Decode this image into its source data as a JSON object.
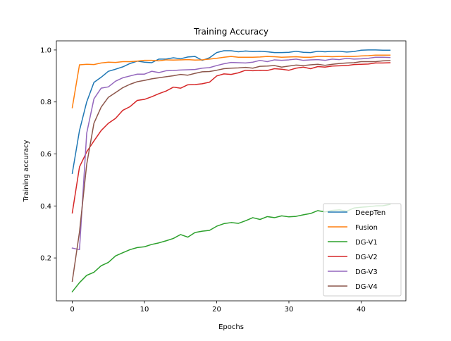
{
  "chart_data": {
    "type": "line",
    "title": "Training Accuracy",
    "xlabel": "Epochs",
    "ylabel": "Training accuracy",
    "xlim": [
      -2.2,
      46.2
    ],
    "ylim": [
      0.035,
      1.035
    ],
    "xticks": [
      0,
      10,
      20,
      30,
      40
    ],
    "yticks": [
      0.2,
      0.4,
      0.6,
      0.8,
      1.0
    ],
    "xtick_labels": [
      "0",
      "10",
      "20",
      "30",
      "40"
    ],
    "ytick_labels": [
      "0.2",
      "0.4",
      "0.6",
      "0.8",
      "1.0"
    ],
    "grid": false,
    "legend_position": "lower-right",
    "x": [
      0,
      1,
      2,
      3,
      4,
      5,
      6,
      7,
      8,
      9,
      10,
      11,
      12,
      13,
      14,
      15,
      16,
      17,
      18,
      19,
      20,
      21,
      22,
      23,
      24,
      25,
      26,
      27,
      28,
      29,
      30,
      31,
      32,
      33,
      34,
      35,
      36,
      37,
      38,
      39,
      40,
      41,
      42,
      43,
      44
    ],
    "series": [
      {
        "name": "DeepTen",
        "color": "#1f77b4",
        "values": [
          0.525,
          0.69,
          0.8,
          0.875,
          0.895,
          0.918,
          0.926,
          0.935,
          0.948,
          0.957,
          0.953,
          0.951,
          0.965,
          0.965,
          0.97,
          0.966,
          0.973,
          0.975,
          0.96,
          0.97,
          0.99,
          0.997,
          0.997,
          0.993,
          0.996,
          0.994,
          0.995,
          0.993,
          0.99,
          0.99,
          0.991,
          0.995,
          0.991,
          0.99,
          0.995,
          0.993,
          0.995,
          0.995,
          0.992,
          0.994,
          0.999,
          1.0,
          1.0,
          0.999,
          0.999
        ]
      },
      {
        "name": "Fusion",
        "color": "#ff7f0e",
        "values": [
          0.778,
          0.943,
          0.945,
          0.944,
          0.95,
          0.953,
          0.952,
          0.955,
          0.955,
          0.957,
          0.96,
          0.96,
          0.958,
          0.962,
          0.961,
          0.962,
          0.963,
          0.961,
          0.962,
          0.965,
          0.968,
          0.972,
          0.975,
          0.972,
          0.972,
          0.972,
          0.973,
          0.975,
          0.974,
          0.972,
          0.973,
          0.974,
          0.972,
          0.972,
          0.975,
          0.975,
          0.974,
          0.975,
          0.975,
          0.975,
          0.977,
          0.978,
          0.98,
          0.98,
          0.98
        ]
      },
      {
        "name": "DG-V1",
        "color": "#2ca02c",
        "values": [
          0.07,
          0.105,
          0.133,
          0.145,
          0.17,
          0.183,
          0.208,
          0.22,
          0.232,
          0.24,
          0.243,
          0.252,
          0.258,
          0.266,
          0.275,
          0.29,
          0.28,
          0.298,
          0.303,
          0.306,
          0.322,
          0.332,
          0.336,
          0.333,
          0.343,
          0.355,
          0.348,
          0.359,
          0.355,
          0.362,
          0.358,
          0.36,
          0.366,
          0.371,
          0.382,
          0.377,
          0.383,
          0.385,
          0.38,
          0.392,
          0.395,
          0.397,
          0.4,
          0.401,
          0.406
        ]
      },
      {
        "name": "DG-V2",
        "color": "#d62728",
        "values": [
          0.373,
          0.55,
          0.608,
          0.65,
          0.69,
          0.718,
          0.737,
          0.768,
          0.782,
          0.806,
          0.81,
          0.82,
          0.832,
          0.842,
          0.857,
          0.853,
          0.866,
          0.867,
          0.87,
          0.876,
          0.9,
          0.908,
          0.906,
          0.912,
          0.922,
          0.92,
          0.922,
          0.921,
          0.928,
          0.926,
          0.922,
          0.93,
          0.934,
          0.928,
          0.936,
          0.934,
          0.938,
          0.939,
          0.94,
          0.944,
          0.945,
          0.946,
          0.95,
          0.95,
          0.951
        ]
      },
      {
        "name": "DG-V3",
        "color": "#9467bd",
        "values": [
          0.238,
          0.232,
          0.68,
          0.812,
          0.853,
          0.858,
          0.88,
          0.893,
          0.9,
          0.907,
          0.907,
          0.918,
          0.913,
          0.92,
          0.921,
          0.923,
          0.924,
          0.925,
          0.93,
          0.932,
          0.94,
          0.947,
          0.952,
          0.951,
          0.95,
          0.953,
          0.96,
          0.955,
          0.962,
          0.96,
          0.962,
          0.965,
          0.96,
          0.962,
          0.963,
          0.96,
          0.965,
          0.963,
          0.968,
          0.965,
          0.966,
          0.968,
          0.972,
          0.972,
          0.971
        ]
      },
      {
        "name": "DG-V4",
        "color": "#8c564b",
        "values": [
          0.11,
          0.3,
          0.56,
          0.718,
          0.78,
          0.818,
          0.836,
          0.855,
          0.868,
          0.878,
          0.883,
          0.889,
          0.893,
          0.897,
          0.901,
          0.906,
          0.903,
          0.91,
          0.916,
          0.917,
          0.922,
          0.928,
          0.93,
          0.931,
          0.933,
          0.93,
          0.937,
          0.938,
          0.94,
          0.934,
          0.938,
          0.942,
          0.94,
          0.943,
          0.945,
          0.941,
          0.945,
          0.948,
          0.95,
          0.951,
          0.955,
          0.955,
          0.955,
          0.958,
          0.959
        ]
      }
    ]
  }
}
